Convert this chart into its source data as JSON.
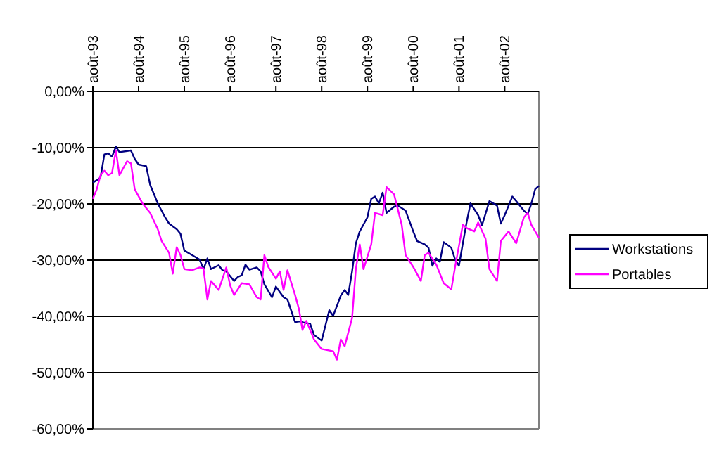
{
  "chart_data": {
    "type": "line",
    "xlim": [
      "1993-08",
      "2003-05"
    ],
    "ylim": [
      -60,
      0
    ],
    "xticks": [
      {
        "value": "1993-08",
        "label": "août-93"
      },
      {
        "value": "1994-08",
        "label": "août-94"
      },
      {
        "value": "1995-08",
        "label": "août-95"
      },
      {
        "value": "1996-08",
        "label": "août-96"
      },
      {
        "value": "1997-08",
        "label": "août-97"
      },
      {
        "value": "1998-08",
        "label": "août-98"
      },
      {
        "value": "1999-08",
        "label": "août-99"
      },
      {
        "value": "2000-08",
        "label": "août-00"
      },
      {
        "value": "2001-08",
        "label": "août-01"
      },
      {
        "value": "2002-08",
        "label": "août-02"
      }
    ],
    "yticks": [
      {
        "value": 0,
        "label": "0,00%"
      },
      {
        "value": -10,
        "label": "-10,00%"
      },
      {
        "value": -20,
        "label": "-20,00%"
      },
      {
        "value": -30,
        "label": "-30,00%"
      },
      {
        "value": -40,
        "label": "-40,00%"
      },
      {
        "value": -50,
        "label": "-50,00%"
      },
      {
        "value": -60,
        "label": "-60,00%"
      }
    ],
    "grid": "y",
    "legend": "right",
    "marker": "none",
    "line_style": "solid",
    "series": [
      {
        "name": "Workstations",
        "color": "#000080",
        "x": [
          "1993-08",
          "1993-09",
          "1993-10",
          "1993-11",
          "1993-12",
          "1994-01",
          "1994-02",
          "1994-03",
          "1994-06",
          "1994-07",
          "1994-08",
          "1994-10",
          "1994-11",
          "1995-01",
          "1995-03",
          "1995-04",
          "1995-06",
          "1995-07",
          "1995-08",
          "1995-10",
          "1995-12",
          "1996-01",
          "1996-02",
          "1996-03",
          "1996-05",
          "1996-06",
          "1996-07",
          "1996-09",
          "1996-10",
          "1996-11",
          "1996-12",
          "1997-01",
          "1997-03",
          "1997-04",
          "1997-05",
          "1997-07",
          "1997-08",
          "1997-10",
          "1997-11",
          "1998-01",
          "1998-02",
          "1998-04",
          "1998-05",
          "1998-06",
          "1998-08",
          "1998-10",
          "1998-11",
          "1999-01",
          "1999-02",
          "1999-03",
          "1999-04",
          "1999-05",
          "1999-06",
          "1999-08",
          "1999-09",
          "1999-10",
          "1999-11",
          "1999-12",
          "2000-01",
          "2000-03",
          "2000-04",
          "2000-06",
          "2000-08",
          "2000-09",
          "2000-11",
          "2000-12",
          "2001-01",
          "2001-02",
          "2001-03",
          "2001-04",
          "2001-06",
          "2001-07",
          "2001-08",
          "2001-09",
          "2001-10",
          "2001-11",
          "2002-01",
          "2002-02",
          "2002-04",
          "2002-06",
          "2002-07",
          "2002-08",
          "2002-10",
          "2002-11",
          "2003-01",
          "2003-02",
          "2003-03",
          "2003-04",
          "2003-05"
        ],
        "values": [
          -16.2,
          -15.8,
          -15.3,
          -11.2,
          -11,
          -11.6,
          -9.8,
          -10.8,
          -10.5,
          -12,
          -13,
          -13.3,
          -16.6,
          -19.9,
          -22.4,
          -23.5,
          -24.5,
          -25.3,
          -28.3,
          -29.1,
          -29.9,
          -31.6,
          -29.7,
          -31.6,
          -30.9,
          -31.8,
          -32,
          -33.7,
          -33,
          -32.7,
          -30.8,
          -31.7,
          -31.3,
          -32,
          -34.3,
          -36.6,
          -34.7,
          -36.6,
          -37,
          -41,
          -40.9,
          -41.2,
          -41.3,
          -43.3,
          -44.3,
          -38.9,
          -39.9,
          -36.3,
          -35.3,
          -36.2,
          -32,
          -27,
          -24.9,
          -22.4,
          -19.1,
          -18.7,
          -19.9,
          -18,
          -21.6,
          -20.5,
          -20.3,
          -21.2,
          -24.9,
          -26.6,
          -27.2,
          -27.8,
          -31,
          -29.7,
          -30.3,
          -26.8,
          -27.8,
          -29.9,
          -31,
          -27,
          -23.3,
          -19.9,
          -22,
          -23.8,
          -19.5,
          -20.3,
          -23.5,
          -22,
          -18.7,
          -19.5,
          -21.2,
          -21.8,
          -20,
          -17.4,
          -16.8
        ]
      },
      {
        "name": "Portables",
        "color": "#ff00ff",
        "x": [
          "1993-08",
          "1993-09",
          "1993-10",
          "1993-11",
          "1993-12",
          "1994-01",
          "1994-02",
          "1994-03",
          "1994-05",
          "1994-06",
          "1994-07",
          "1994-09",
          "1994-11",
          "1995-01",
          "1995-02",
          "1995-04",
          "1995-05",
          "1995-06",
          "1995-07",
          "1995-08",
          "1995-10",
          "1995-12",
          "1996-01",
          "1996-02",
          "1996-03",
          "1996-05",
          "1996-07",
          "1996-08",
          "1996-09",
          "1996-11",
          "1997-01",
          "1997-03",
          "1997-04",
          "1997-05",
          "1997-06",
          "1997-08",
          "1997-09",
          "1997-10",
          "1997-11",
          "1998-01",
          "1998-02",
          "1998-03",
          "1998-04",
          "1998-05",
          "1998-06",
          "1998-08",
          "1998-11",
          "1998-12",
          "1999-01",
          "1999-02",
          "1999-04",
          "1999-05",
          "1999-06",
          "1999-07",
          "1999-09",
          "1999-10",
          "1999-12",
          "2000-01",
          "2000-03",
          "2000-05",
          "2000-06",
          "2000-08",
          "2000-10",
          "2000-11",
          "2000-12",
          "2001-02",
          "2001-04",
          "2001-06",
          "2001-07",
          "2001-09",
          "2001-10",
          "2001-12",
          "2002-01",
          "2002-03",
          "2002-04",
          "2002-06",
          "2002-07",
          "2002-09",
          "2002-11",
          "2003-01",
          "2003-02",
          "2003-03",
          "2003-05"
        ],
        "values": [
          -19.1,
          -17.4,
          -14.9,
          -14.1,
          -14.9,
          -14.5,
          -10.5,
          -14.9,
          -12.4,
          -12.8,
          -17.4,
          -19.9,
          -21.6,
          -24.5,
          -26.6,
          -28.7,
          -32.4,
          -27.7,
          -29.1,
          -31.6,
          -31.8,
          -31.3,
          -31.5,
          -37,
          -33.7,
          -35.3,
          -31.3,
          -34.5,
          -36.2,
          -34.1,
          -34.3,
          -36.6,
          -37,
          -29.1,
          -31.2,
          -33.3,
          -32,
          -35.3,
          -31.8,
          -36.2,
          -38.7,
          -42.4,
          -40.8,
          -42.4,
          -44.1,
          -45.8,
          -46.2,
          -47.7,
          -44.1,
          -45.3,
          -40.3,
          -31.6,
          -27.2,
          -31.6,
          -27.2,
          -21.6,
          -22,
          -17,
          -18.3,
          -23.7,
          -29.1,
          -31.2,
          -33.7,
          -29.1,
          -28.7,
          -30.8,
          -34.1,
          -35.2,
          -31.2,
          -23.7,
          -24.3,
          -24.9,
          -23.3,
          -26.2,
          -31.6,
          -33.7,
          -26.6,
          -24.9,
          -27,
          -22.4,
          -21.6,
          -23.7,
          -26
        ]
      }
    ]
  }
}
